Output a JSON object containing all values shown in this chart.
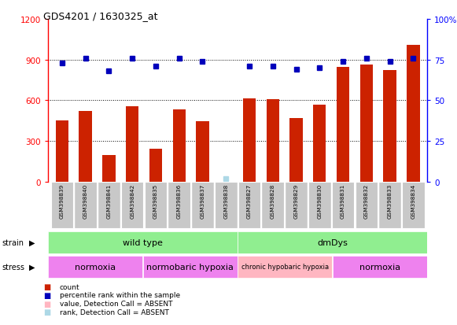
{
  "title": "GDS4201 / 1630325_at",
  "samples": [
    "GSM398839",
    "GSM398840",
    "GSM398841",
    "GSM398842",
    "GSM398835",
    "GSM398836",
    "GSM398837",
    "GSM398838",
    "GSM398827",
    "GSM398828",
    "GSM398829",
    "GSM398830",
    "GSM398831",
    "GSM398832",
    "GSM398833",
    "GSM398834"
  ],
  "counts": [
    450,
    520,
    195,
    555,
    245,
    535,
    445,
    0,
    615,
    605,
    470,
    565,
    845,
    860,
    820,
    1010
  ],
  "percentile_ranks": [
    73,
    76,
    68,
    76,
    71,
    76,
    74,
    2,
    71,
    71,
    69,
    70,
    74,
    76,
    74,
    76
  ],
  "absent_mask": [
    false,
    false,
    false,
    false,
    false,
    false,
    false,
    true,
    false,
    false,
    false,
    false,
    false,
    false,
    false,
    false
  ],
  "strain_groups": [
    {
      "label": "wild type",
      "start": 0,
      "end": 8
    },
    {
      "label": "dmDys",
      "start": 8,
      "end": 16
    }
  ],
  "stress_groups": [
    {
      "label": "normoxia",
      "start": 0,
      "end": 4,
      "color": "#ee82ee"
    },
    {
      "label": "normobaric hypoxia",
      "start": 4,
      "end": 8,
      "color": "#ee82ee"
    },
    {
      "label": "chronic hypobaric hypoxia",
      "start": 8,
      "end": 12,
      "color": "#ffb6c1"
    },
    {
      "label": "normoxia",
      "start": 12,
      "end": 16,
      "color": "#ee82ee"
    }
  ],
  "left_ylim": [
    0,
    1200
  ],
  "right_ylim": [
    0,
    100
  ],
  "left_yticks": [
    0,
    300,
    600,
    900,
    1200
  ],
  "right_yticks": [
    0,
    25,
    50,
    75,
    100
  ],
  "bar_color": "#cc2200",
  "dot_color": "#0000bb",
  "absent_bar_color": "#ffb6c1",
  "absent_dot_color": "#add8e6",
  "strain_color": "#90ee90",
  "bg_color": "#ffffff",
  "sample_bg_color": "#c8c8c8",
  "legend_items": [
    {
      "label": "count",
      "color": "#cc2200"
    },
    {
      "label": "percentile rank within the sample",
      "color": "#0000bb"
    },
    {
      "label": "value, Detection Call = ABSENT",
      "color": "#ffb6c1"
    },
    {
      "label": "rank, Detection Call = ABSENT",
      "color": "#add8e6"
    }
  ]
}
